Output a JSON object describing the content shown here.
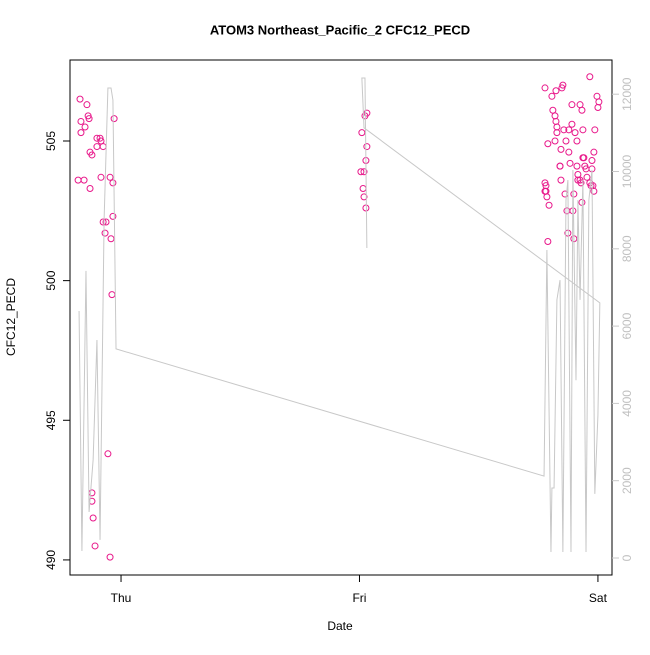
{
  "chart_data": {
    "type": "scatter",
    "title": "ATOM3 Northeast_Pacific_2 CFC12_PECD",
    "xlabel": "Date",
    "ylabel": "CFC12_PECD",
    "xlim": [
      -0.214,
      2.059
    ],
    "xticks": [
      {
        "value": 0,
        "label": "Thu"
      },
      {
        "value": 1,
        "label": "Fri"
      },
      {
        "value": 2,
        "label": "Sat"
      }
    ],
    "ylim": [
      489.46,
      507.9
    ],
    "yticks": [
      490,
      495,
      500,
      505
    ],
    "y2lim": [
      -440,
      12885
    ],
    "y2ticks": [
      0,
      2000,
      4000,
      6000,
      8000,
      10000,
      12000
    ],
    "series": [
      {
        "type": "scatter",
        "color": "#e8178a",
        "x": [
          -0.172,
          -0.168,
          -0.168,
          -0.143,
          -0.151,
          -0.138,
          -0.134,
          -0.18,
          -0.155,
          -0.13,
          -0.122,
          -0.13,
          -0.101,
          -0.101,
          -0.088,
          -0.084,
          -0.075,
          -0.084,
          -0.075,
          -0.063,
          -0.067,
          -0.046,
          -0.042,
          -0.034,
          -0.034,
          -0.029,
          -0.038,
          -0.055,
          -0.122,
          -0.122,
          -0.117,
          -0.109,
          -0.046,
          1.01,
          1.023,
          1.031,
          1.031,
          1.027,
          1.006,
          1.019,
          1.015,
          1.019,
          1.027,
          1.778,
          1.79,
          1.778,
          1.782,
          1.778,
          1.782,
          1.786,
          1.795,
          1.79,
          1.807,
          1.82,
          1.811,
          1.828,
          1.824,
          1.82,
          1.828,
          1.824,
          1.841,
          1.841,
          1.845,
          1.845,
          1.849,
          1.853,
          1.857,
          1.862,
          1.866,
          1.87,
          1.874,
          1.878,
          1.878,
          1.883,
          1.891,
          1.895,
          1.899,
          1.891,
          1.899,
          1.904,
          1.912,
          1.912,
          1.916,
          1.916,
          1.925,
          1.925,
          1.933,
          1.933,
          1.929,
          1.937,
          1.941,
          1.937,
          1.945,
          1.95,
          1.954,
          1.966,
          1.966,
          1.971,
          1.975,
          1.979,
          1.983,
          1.983,
          1.987,
          1.996,
          2.0,
          2.004,
          1.975
        ],
        "values": [
          506.5,
          505.7,
          505.3,
          506.3,
          505.5,
          505.9,
          505.8,
          503.6,
          503.6,
          504.6,
          504.5,
          503.3,
          504.8,
          505.1,
          505.1,
          505.0,
          504.8,
          503.7,
          502.1,
          502.1,
          501.7,
          503.7,
          501.5,
          503.5,
          502.3,
          505.8,
          499.5,
          493.8,
          492.4,
          492.1,
          491.5,
          490.5,
          490.1,
          505.3,
          505.9,
          506.0,
          504.8,
          504.3,
          503.9,
          503.9,
          503.3,
          503.0,
          502.6,
          506.9,
          504.9,
          503.5,
          503.4,
          503.2,
          503.2,
          503.0,
          502.7,
          501.4,
          506.6,
          505.9,
          506.1,
          505.3,
          505.7,
          505.0,
          505.5,
          506.8,
          504.1,
          504.1,
          504.7,
          503.6,
          506.9,
          507.0,
          505.4,
          503.1,
          505.0,
          502.5,
          501.7,
          504.6,
          505.4,
          504.2,
          505.6,
          502.5,
          501.5,
          506.3,
          503.1,
          505.3,
          505.0,
          504.1,
          503.6,
          503.8,
          503.6,
          506.3,
          506.1,
          502.8,
          503.5,
          504.4,
          504.4,
          505.4,
          504.1,
          504.0,
          503.7,
          507.3,
          503.5,
          503.4,
          504.3,
          503.4,
          503.2,
          504.6,
          505.4,
          506.6,
          506.2,
          506.4,
          504.0
        ]
      },
      {
        "type": "line",
        "axis": "y2",
        "color": "#c8c8c8",
        "x": [
          -0.176,
          -0.164,
          -0.147,
          -0.134,
          -0.117,
          -0.101,
          -0.088,
          -0.071,
          -0.055,
          -0.042,
          -0.034,
          -0.021,
          1.774,
          1.786,
          1.803,
          1.807,
          1.816,
          1.828,
          1.841,
          1.853,
          1.866,
          1.874,
          1.887,
          1.895,
          1.908,
          1.916,
          1.925,
          1.937,
          1.95,
          1.962,
          1.975,
          1.987,
          2.0,
          2.008,
          1.019,
          1.01,
          1.023,
          1.031
        ],
        "values": [
          6390,
          180,
          7430,
          1190,
          2540,
          5640,
          470,
          8750,
          12160,
          12160,
          11850,
          5410,
          2120,
          7970,
          155,
          1810,
          1810,
          6680,
          7190,
          155,
          9260,
          9780,
          155,
          10040,
          4600,
          9260,
          6680,
          9780,
          155,
          9260,
          10040,
          1660,
          3700,
          6600,
          11130,
          12420,
          12420,
          8020
        ]
      }
    ]
  }
}
